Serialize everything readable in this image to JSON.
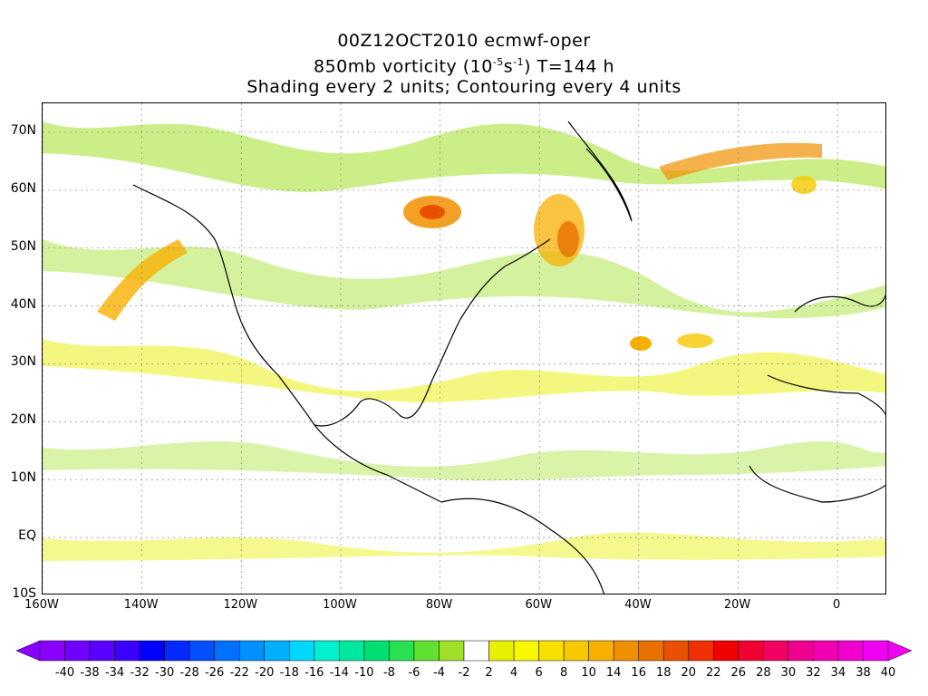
{
  "title": {
    "line1": "00Z12OCT2010 ecmwf-oper",
    "line2_prefix": "850mb vorticity (10",
    "line2_exp1": "-5",
    "line2_mid": "s",
    "line2_exp2": "-1",
    "line2_suffix": ") T=144 h",
    "line3": "Shading every 2 units; Contouring every 4 units"
  },
  "map": {
    "lat_labels": [
      "70N",
      "60N",
      "50N",
      "40N",
      "30N",
      "20N",
      "10N",
      "EQ",
      "10S"
    ],
    "lat_values": [
      70,
      60,
      50,
      40,
      30,
      20,
      10,
      0,
      -10
    ],
    "lon_labels": [
      "160W",
      "140W",
      "120W",
      "100W",
      "80W",
      "60W",
      "40W",
      "20W",
      "0"
    ],
    "lon_values": [
      -160,
      -140,
      -120,
      -100,
      -80,
      -60,
      -40,
      -20,
      0
    ],
    "lon_range": [
      -160,
      10
    ],
    "lat_range": [
      -10,
      75
    ],
    "gridlines": "dotted"
  },
  "colorbar": {
    "labels": [
      "-40",
      "-38",
      "-34",
      "-32",
      "-30",
      "-28",
      "-26",
      "-22",
      "-20",
      "-18",
      "-16",
      "-14",
      "-10",
      "-8",
      "-6",
      "-4",
      "-2",
      "2",
      "4",
      "6",
      "8",
      "10",
      "14",
      "16",
      "18",
      "20",
      "22",
      "26",
      "28",
      "30",
      "32",
      "34",
      "38",
      "40"
    ],
    "colors": [
      "#8a00ff",
      "#7000ff",
      "#5a00ff",
      "#3c00ff",
      "#0000ff",
      "#0028ff",
      "#0050ff",
      "#0070ff",
      "#0090ff",
      "#00b0ff",
      "#00d8ff",
      "#00f0d0",
      "#00e8a0",
      "#00e070",
      "#28e050",
      "#60e030",
      "#a0e028",
      "#ffffff",
      "#e8f000",
      "#f8f800",
      "#f8e000",
      "#f8c800",
      "#f8b000",
      "#f09000",
      "#e87000",
      "#e85000",
      "#f03000",
      "#f00000",
      "#f00030",
      "#f00060",
      "#f00090",
      "#f000b0",
      "#f000d0",
      "#f000f0"
    ],
    "overflow_left_color": "#8a00ff",
    "overflow_right_color": "#f000f0"
  }
}
